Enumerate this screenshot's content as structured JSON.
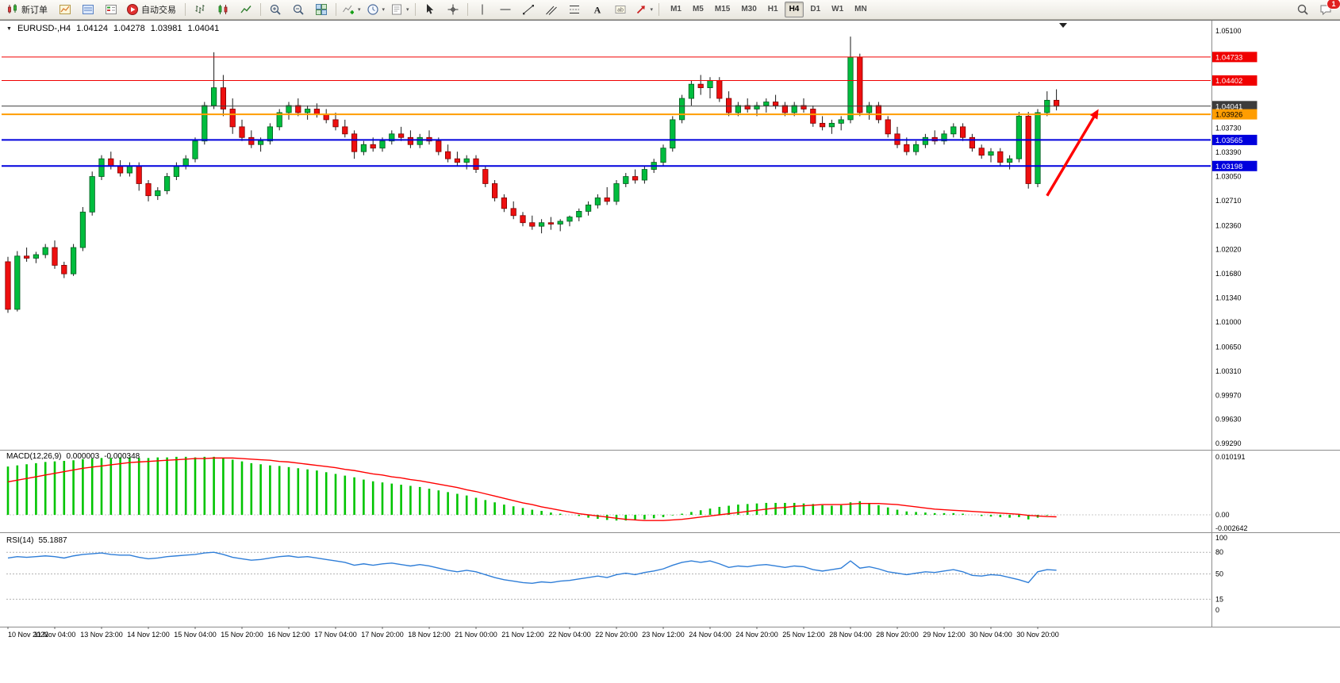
{
  "toolbar": {
    "new_order_label": "新订单",
    "auto_trading_label": "自动交易",
    "timeframes": [
      "M1",
      "M5",
      "M15",
      "M30",
      "H1",
      "H4",
      "D1",
      "W1",
      "MN"
    ],
    "active_timeframe": "H4",
    "chat_badge": "1"
  },
  "chart": {
    "symbol_period": "EURUSD-,H4",
    "open": "1.04124",
    "high": "1.04278",
    "low": "1.03981",
    "close": "1.04041"
  },
  "chart_data": {
    "type": "candlestick+indicators",
    "symbol": "EURUSD-",
    "timeframe": "H4",
    "current_ohlc": {
      "open": 1.04124,
      "high": 1.04278,
      "low": 1.03981,
      "close": 1.04041
    },
    "y_axis": {
      "max": 1.051,
      "min": 0.9929,
      "ticks": [
        1.051,
        1.0373,
        1.0339,
        1.0305,
        1.0271,
        1.0236,
        1.0202,
        1.0168,
        1.0134,
        1.01,
        1.0065,
        1.0031,
        0.9997,
        0.9963,
        0.9929
      ]
    },
    "x_axis_labels": [
      "10 Nov 2022",
      "11 Nov 04:00",
      "13 Nov 23:00",
      "14 Nov 12:00",
      "15 Nov 04:00",
      "15 Nov 20:00",
      "16 Nov 12:00",
      "17 Nov 04:00",
      "17 Nov 20:00",
      "18 Nov 12:00",
      "21 Nov 00:00",
      "21 Nov 12:00",
      "22 Nov 04:00",
      "22 Nov 20:00",
      "23 Nov 12:00",
      "24 Nov 04:00",
      "24 Nov 20:00",
      "25 Nov 12:00",
      "28 Nov 04:00",
      "28 Nov 20:00",
      "29 Nov 12:00",
      "30 Nov 04:00",
      "30 Nov 20:00"
    ],
    "bars_per_label": 5,
    "hlines": [
      {
        "price": 1.04733,
        "color": "#f00000",
        "width": 1,
        "text_color": "#ffffff"
      },
      {
        "price": 1.04402,
        "color": "#f00000",
        "width": 1,
        "text_color": "#ffffff"
      },
      {
        "price": 1.04041,
        "color": "#3c3c3c",
        "width": 1,
        "text_color": "#ffffff",
        "role": "current_price"
      },
      {
        "price": 1.03926,
        "color": "#ff9d00",
        "width": 2,
        "text_color": "#000000"
      },
      {
        "price": 1.03565,
        "color": "#0000dd",
        "width": 2,
        "text_color": "#ffffff"
      },
      {
        "price": 1.03198,
        "color": "#0000dd",
        "width": 2,
        "text_color": "#ffffff"
      }
    ],
    "candles": [
      [
        1.0185,
        1.0192,
        1.0113,
        1.0118
      ],
      [
        1.0118,
        1.02,
        1.0115,
        1.0193
      ],
      [
        1.0193,
        1.0205,
        1.0185,
        1.019
      ],
      [
        1.019,
        1.0199,
        1.0183,
        1.0195
      ],
      [
        1.0195,
        1.021,
        1.019,
        1.0205
      ],
      [
        1.0205,
        1.0215,
        1.0175,
        1.018
      ],
      [
        1.018,
        1.0185,
        1.0162,
        1.0168
      ],
      [
        1.0168,
        1.021,
        1.0165,
        1.0205
      ],
      [
        1.0205,
        1.0262,
        1.02,
        1.0255
      ],
      [
        1.0255,
        1.0312,
        1.025,
        1.0305
      ],
      [
        1.0305,
        1.0335,
        1.03,
        1.033
      ],
      [
        1.033,
        1.034,
        1.0315,
        1.032
      ],
      [
        1.032,
        1.0328,
        1.0305,
        1.031
      ],
      [
        1.031,
        1.0325,
        1.0305,
        1.032
      ],
      [
        1.032,
        1.0325,
        1.0285,
        1.0295
      ],
      [
        1.0295,
        1.03,
        1.027,
        1.0278
      ],
      [
        1.0278,
        1.029,
        1.0272,
        1.0285
      ],
      [
        1.0285,
        1.031,
        1.028,
        1.0305
      ],
      [
        1.0305,
        1.0325,
        1.03,
        1.032
      ],
      [
        1.032,
        1.0335,
        1.0315,
        1.033
      ],
      [
        1.033,
        1.036,
        1.0325,
        1.0355
      ],
      [
        1.0355,
        1.041,
        1.035,
        1.0405
      ],
      [
        1.0405,
        1.048,
        1.04,
        1.043
      ],
      [
        1.043,
        1.0448,
        1.039,
        1.04
      ],
      [
        1.04,
        1.0415,
        1.0365,
        1.0375
      ],
      [
        1.0375,
        1.0385,
        1.0355,
        1.036
      ],
      [
        1.036,
        1.037,
        1.0345,
        1.035
      ],
      [
        1.035,
        1.036,
        1.034,
        1.0355
      ],
      [
        1.0355,
        1.038,
        1.035,
        1.0375
      ],
      [
        1.0375,
        1.04,
        1.037,
        1.0395
      ],
      [
        1.0395,
        1.041,
        1.0385,
        1.0405
      ],
      [
        1.0405,
        1.0415,
        1.039,
        1.0395
      ],
      [
        1.0395,
        1.0405,
        1.0385,
        1.04
      ],
      [
        1.04,
        1.0408,
        1.0388,
        1.0392
      ],
      [
        1.0392,
        1.04,
        1.038,
        1.0385
      ],
      [
        1.0385,
        1.0395,
        1.037,
        1.0375
      ],
      [
        1.0375,
        1.0385,
        1.036,
        1.0365
      ],
      [
        1.0365,
        1.037,
        1.033,
        1.034
      ],
      [
        1.034,
        1.0355,
        1.0335,
        1.035
      ],
      [
        1.035,
        1.036,
        1.034,
        1.0345
      ],
      [
        1.0345,
        1.036,
        1.034,
        1.0355
      ],
      [
        1.0355,
        1.037,
        1.035,
        1.0365
      ],
      [
        1.0365,
        1.0375,
        1.0355,
        1.036
      ],
      [
        1.036,
        1.037,
        1.0345,
        1.035
      ],
      [
        1.035,
        1.0365,
        1.0345,
        1.036
      ],
      [
        1.036,
        1.037,
        1.035,
        1.0355
      ],
      [
        1.0355,
        1.036,
        1.0335,
        1.034
      ],
      [
        1.034,
        1.035,
        1.0325,
        1.033
      ],
      [
        1.033,
        1.034,
        1.032,
        1.0325
      ],
      [
        1.0325,
        1.0335,
        1.0315,
        1.033
      ],
      [
        1.033,
        1.0335,
        1.031,
        1.0315
      ],
      [
        1.0315,
        1.032,
        1.029,
        1.0295
      ],
      [
        1.0295,
        1.03,
        1.027,
        1.0275
      ],
      [
        1.0275,
        1.028,
        1.0255,
        1.026
      ],
      [
        1.026,
        1.027,
        1.0245,
        1.025
      ],
      [
        1.025,
        1.0255,
        1.0235,
        1.024
      ],
      [
        1.024,
        1.025,
        1.023,
        1.0235
      ],
      [
        1.0235,
        1.0245,
        1.0225,
        1.024
      ],
      [
        1.024,
        1.0248,
        1.023,
        1.0238
      ],
      [
        1.0238,
        1.0245,
        1.0228,
        1.0242
      ],
      [
        1.0242,
        1.025,
        1.0235,
        1.0248
      ],
      [
        1.0248,
        1.026,
        1.0242,
        1.0256
      ],
      [
        1.0256,
        1.027,
        1.025,
        1.0265
      ],
      [
        1.0265,
        1.028,
        1.026,
        1.0275
      ],
      [
        1.0275,
        1.029,
        1.0265,
        1.027
      ],
      [
        1.027,
        1.03,
        1.0265,
        1.0295
      ],
      [
        1.0295,
        1.031,
        1.029,
        1.0305
      ],
      [
        1.0305,
        1.0315,
        1.0295,
        1.03
      ],
      [
        1.03,
        1.032,
        1.0295,
        1.0315
      ],
      [
        1.0315,
        1.033,
        1.031,
        1.0325
      ],
      [
        1.0325,
        1.035,
        1.032,
        1.0345
      ],
      [
        1.0345,
        1.039,
        1.034,
        1.0385
      ],
      [
        1.0385,
        1.042,
        1.038,
        1.0415
      ],
      [
        1.0415,
        1.044,
        1.0405,
        1.0435
      ],
      [
        1.0435,
        1.0448,
        1.042,
        1.043
      ],
      [
        1.043,
        1.0445,
        1.0415,
        1.044
      ],
      [
        1.044,
        1.0445,
        1.041,
        1.0415
      ],
      [
        1.0415,
        1.0425,
        1.039,
        1.0395
      ],
      [
        1.0395,
        1.041,
        1.039,
        1.0405
      ],
      [
        1.0405,
        1.0415,
        1.0395,
        1.04
      ],
      [
        1.04,
        1.041,
        1.039,
        1.0405
      ],
      [
        1.0405,
        1.0415,
        1.0395,
        1.041
      ],
      [
        1.041,
        1.042,
        1.04,
        1.0405
      ],
      [
        1.0405,
        1.041,
        1.039,
        1.0395
      ],
      [
        1.0395,
        1.041,
        1.039,
        1.0405
      ],
      [
        1.0405,
        1.0415,
        1.0395,
        1.04
      ],
      [
        1.04,
        1.0405,
        1.0375,
        1.038
      ],
      [
        1.038,
        1.039,
        1.037,
        1.0375
      ],
      [
        1.0375,
        1.0385,
        1.0365,
        1.038
      ],
      [
        1.038,
        1.039,
        1.037,
        1.0385
      ],
      [
        1.0385,
        1.0502,
        1.038,
        1.0473
      ],
      [
        1.0473,
        1.0478,
        1.039,
        1.0395
      ],
      [
        1.0395,
        1.041,
        1.0385,
        1.0405
      ],
      [
        1.0405,
        1.041,
        1.038,
        1.0385
      ],
      [
        1.0385,
        1.039,
        1.036,
        1.0365
      ],
      [
        1.0365,
        1.0375,
        1.0345,
        1.035
      ],
      [
        1.035,
        1.036,
        1.0335,
        1.034
      ],
      [
        1.034,
        1.0355,
        1.0335,
        1.035
      ],
      [
        1.035,
        1.0365,
        1.0345,
        1.036
      ],
      [
        1.036,
        1.037,
        1.035,
        1.0355
      ],
      [
        1.0355,
        1.037,
        1.035,
        1.0365
      ],
      [
        1.0365,
        1.038,
        1.036,
        1.0375
      ],
      [
        1.0375,
        1.038,
        1.0355,
        1.036
      ],
      [
        1.036,
        1.0365,
        1.034,
        1.0345
      ],
      [
        1.0345,
        1.035,
        1.033,
        1.0335
      ],
      [
        1.0335,
        1.0345,
        1.0325,
        1.034
      ],
      [
        1.034,
        1.0345,
        1.032,
        1.0325
      ],
      [
        1.0325,
        1.0335,
        1.0315,
        1.033
      ],
      [
        1.033,
        1.0396,
        1.0325,
        1.039
      ],
      [
        1.039,
        1.0396,
        1.0288,
        1.0295
      ],
      [
        1.0295,
        1.04,
        1.029,
        1.0395
      ],
      [
        1.0395,
        1.0425,
        1.039,
        1.04124
      ],
      [
        1.04124,
        1.04278,
        1.03981,
        1.04041
      ]
    ],
    "macd": {
      "label": "MACD(12,26,9)",
      "main_value": 3e-06,
      "signal_value": -0.000348,
      "main_text": "0.000003",
      "signal_text": "-0.000348",
      "axis": [
        0.010191,
        0,
        -0.002642
      ],
      "histogram": [
        0.0085,
        0.0087,
        0.0089,
        0.0091,
        0.0093,
        0.0094,
        0.0095,
        0.0096,
        0.0098,
        0.0099,
        0.01,
        0.01,
        0.0101,
        0.0101,
        0.01,
        0.01,
        0.0101,
        0.0101,
        0.0102,
        0.0102,
        0.0101,
        0.0102,
        0.0102,
        0.01,
        0.0097,
        0.0094,
        0.0091,
        0.0089,
        0.0087,
        0.0086,
        0.0084,
        0.0082,
        0.008,
        0.0078,
        0.0075,
        0.0072,
        0.0069,
        0.0066,
        0.0062,
        0.0059,
        0.0057,
        0.0055,
        0.0053,
        0.0051,
        0.0049,
        0.0046,
        0.0043,
        0.004,
        0.0037,
        0.0034,
        0.003,
        0.0026,
        0.0022,
        0.0018,
        0.0015,
        0.0012,
        0.0009,
        0.0007,
        0.0004,
        0.0002,
        0.0,
        -0.0002,
        -0.0005,
        -0.0007,
        -0.0009,
        -0.001,
        -0.001,
        -0.0009,
        -0.0008,
        -0.0006,
        -0.0004,
        -0.0001,
        0.0002,
        0.0005,
        0.0008,
        0.0011,
        0.0014,
        0.0016,
        0.0018,
        0.0019,
        0.002,
        0.0021,
        0.0021,
        0.0021,
        0.0021,
        0.002,
        0.0019,
        0.0017,
        0.0016,
        0.0017,
        0.0022,
        0.0024,
        0.0021,
        0.0017,
        0.0013,
        0.0009,
        0.0006,
        0.0005,
        0.0004,
        0.0003,
        0.0003,
        0.0003,
        0.0002,
        0.0,
        -0.0002,
        -0.0003,
        -0.0004,
        -0.0005,
        -0.0004,
        -0.0008,
        -0.0005,
        -0.0001,
        3e-06
      ],
      "signal": [
        0.0058,
        0.0061,
        0.0064,
        0.0067,
        0.007,
        0.0073,
        0.0076,
        0.0079,
        0.0082,
        0.0084,
        0.0086,
        0.0088,
        0.009,
        0.0092,
        0.0093,
        0.0094,
        0.0095,
        0.0096,
        0.0097,
        0.0098,
        0.0099,
        0.0099,
        0.01,
        0.01,
        0.01,
        0.0099,
        0.0098,
        0.0097,
        0.0096,
        0.0094,
        0.0093,
        0.0091,
        0.0089,
        0.0087,
        0.0085,
        0.0083,
        0.008,
        0.0078,
        0.0075,
        0.0072,
        0.007,
        0.0067,
        0.0065,
        0.0062,
        0.006,
        0.0057,
        0.0054,
        0.0051,
        0.0048,
        0.0044,
        0.0041,
        0.0037,
        0.0033,
        0.0029,
        0.0025,
        0.0021,
        0.0018,
        0.0014,
        0.0011,
        0.0008,
        0.0005,
        0.0002,
        0.0,
        -0.0002,
        -0.0004,
        -0.0006,
        -0.0008,
        -0.0009,
        -0.001,
        -0.001,
        -0.001,
        -0.0009,
        -0.0008,
        -0.0006,
        -0.0004,
        -0.0002,
        0.0,
        0.0002,
        0.0004,
        0.0006,
        0.0008,
        0.001,
        0.0012,
        0.0013,
        0.0015,
        0.0016,
        0.0017,
        0.0018,
        0.0018,
        0.0018,
        0.0019,
        0.002,
        0.002,
        0.002,
        0.0019,
        0.0018,
        0.0016,
        0.0014,
        0.0012,
        0.001,
        0.0009,
        0.0008,
        0.0007,
        0.0006,
        0.0005,
        0.0004,
        0.0003,
        0.0002,
        0.0001,
        -0.0001,
        -0.0002,
        -0.0003,
        -0.000348
      ]
    },
    "rsi": {
      "label": "RSI(14)",
      "value": 55.1887,
      "value_text": "55.1887",
      "levels": [
        80,
        50,
        15
      ],
      "axis": [
        100,
        80,
        50,
        15,
        0
      ],
      "values": [
        72,
        74,
        73,
        74,
        75,
        74,
        72,
        75,
        77,
        78,
        79,
        77,
        76,
        76,
        73,
        71,
        72,
        74,
        75,
        76,
        77,
        79,
        80,
        77,
        73,
        71,
        69,
        70,
        72,
        74,
        75,
        73,
        74,
        72,
        70,
        68,
        66,
        62,
        64,
        62,
        64,
        65,
        63,
        61,
        63,
        61,
        58,
        55,
        53,
        55,
        53,
        49,
        45,
        42,
        40,
        38,
        37,
        39,
        38,
        40,
        41,
        43,
        45,
        47,
        45,
        49,
        51,
        49,
        52,
        54,
        57,
        62,
        66,
        68,
        66,
        68,
        64,
        59,
        61,
        60,
        62,
        63,
        61,
        59,
        61,
        60,
        56,
        54,
        56,
        58,
        68,
        58,
        60,
        57,
        53,
        51,
        49,
        51,
        53,
        52,
        54,
        56,
        53,
        48,
        47,
        49,
        48,
        45,
        42,
        38,
        53,
        56,
        55.1887
      ]
    },
    "arrow": {
      "from_bar": 111,
      "from_price": 1.0278,
      "to_bar": 116.5,
      "to_price": 1.04,
      "color": "#ff0000"
    },
    "colors": {
      "up": "#00bd3e",
      "down": "#ee0f0f",
      "wick": "#1a1a1a",
      "macd_hist": "#00c400",
      "macd_signal": "#ff0000",
      "rsi_line": "#2f7ed8",
      "bg": "#ffffff",
      "axis_text": "#000000"
    }
  }
}
